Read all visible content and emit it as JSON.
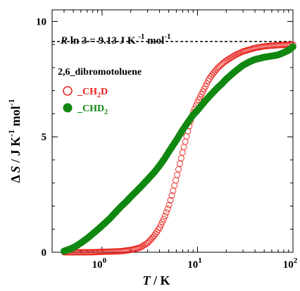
{
  "chart_data": {
    "type": "scatter",
    "xscale": "log",
    "xlim": [
      0.3,
      100
    ],
    "ylim": [
      0,
      10.5
    ],
    "x_ticks": [
      {
        "value": 1,
        "base": "10",
        "exp": "0"
      },
      {
        "value": 10,
        "base": "10",
        "exp": "1"
      },
      {
        "value": 100,
        "base": "10",
        "exp": "2"
      }
    ],
    "y_ticks": [
      {
        "value": 0,
        "label": "0"
      },
      {
        "value": 5,
        "label": "5"
      },
      {
        "value": 10,
        "label": "10"
      }
    ],
    "xlabel": {
      "symbol": "T",
      "unit": " / K"
    },
    "ylabel": {
      "prefix": "Δ",
      "symbol": "S",
      "unit": " / J K",
      "sup1": "-1",
      "mid": " mol",
      "sup2": "-1"
    },
    "reference_line": {
      "y": 9.13,
      "style": "dashed",
      "label": {
        "symbol": "R",
        "text": " ln 3 = 9.13 J K ",
        "sup1": "-1",
        "mid": " mol",
        "sup2": "-1"
      }
    },
    "legend_title": "2,6_dibromotoluene",
    "series": [
      {
        "name_main": "_CH",
        "name_sub": "2",
        "name_tail": "D",
        "color": "#e8201a",
        "marker": "open-circle",
        "x": [
          0.4,
          0.5,
          0.6,
          0.8,
          1.0,
          1.3,
          1.6,
          2.0,
          2.5,
          3.0,
          3.5,
          4.0,
          4.5,
          5.0,
          5.5,
          6.0,
          6.5,
          7.0,
          7.5,
          8.0,
          8.5,
          9.0,
          10,
          11,
          12,
          13,
          14,
          16,
          18,
          20,
          25,
          30,
          40,
          50,
          60,
          70,
          80,
          90,
          100
        ],
        "y": [
          0.0,
          0.0,
          0.0,
          0.0,
          0.02,
          0.03,
          0.05,
          0.1,
          0.2,
          0.4,
          0.7,
          1.05,
          1.5,
          2.0,
          2.6,
          3.2,
          3.8,
          4.35,
          4.85,
          5.3,
          5.7,
          6.05,
          6.5,
          6.85,
          7.15,
          7.45,
          7.65,
          7.95,
          8.15,
          8.3,
          8.55,
          8.7,
          8.85,
          8.92,
          8.95,
          8.97,
          8.98,
          8.99,
          9.0
        ]
      },
      {
        "name_main": "_CHD",
        "name_sub": "2",
        "name_tail": "",
        "color": "#118811",
        "marker": "filled-circle",
        "x": [
          0.4,
          0.45,
          0.5,
          0.55,
          0.6,
          0.7,
          0.8,
          0.9,
          1.0,
          1.2,
          1.4,
          1.6,
          1.8,
          2.0,
          2.5,
          3.0,
          3.5,
          4.0,
          4.5,
          5.0,
          6.0,
          7.0,
          8.0,
          9.0,
          10,
          12,
          14,
          16,
          18,
          20,
          25,
          30,
          35,
          40,
          45,
          50,
          60,
          70,
          80,
          90,
          100
        ],
        "y": [
          0.05,
          0.12,
          0.2,
          0.3,
          0.4,
          0.6,
          0.8,
          0.98,
          1.15,
          1.45,
          1.75,
          2.0,
          2.2,
          2.4,
          2.8,
          3.15,
          3.45,
          3.75,
          4.05,
          4.35,
          4.85,
          5.3,
          5.65,
          5.95,
          6.15,
          6.55,
          6.85,
          7.1,
          7.3,
          7.5,
          7.85,
          8.1,
          8.25,
          8.35,
          8.4,
          8.45,
          8.5,
          8.55,
          8.65,
          8.75,
          8.9
        ]
      }
    ]
  }
}
